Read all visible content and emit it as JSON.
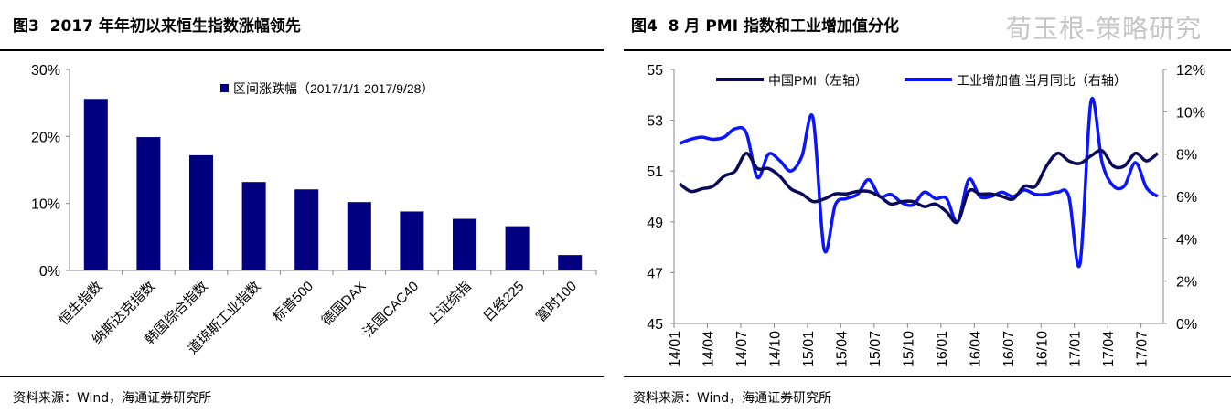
{
  "left": {
    "title": "图3  2017 年年初以来恒生指数涨幅领先",
    "footer": "资料来源：Wind，海通证券研究所"
  },
  "right": {
    "title": "图4  8 月 PMI 指数和工业增加值分化",
    "footer": "资料来源：Wind，海通证券研究所",
    "watermark": "荀玉根-策略研究"
  },
  "colors": {
    "bar": "#000080",
    "pmi": "#0a0a5a",
    "ip": "#0a14ff"
  },
  "chart_data": [
    {
      "type": "bar",
      "title": "2017 年年初以来恒生指数涨幅领先",
      "categories": [
        "恒生指数",
        "纳斯达克指数",
        "韩国综合指数",
        "道琼斯工业指数",
        "标普500",
        "德国DAX",
        "法国CAC40",
        "上证综指",
        "日经225",
        "富时100"
      ],
      "series": [
        {
          "name": "区间涨跌幅（2017/1/1-2017/9/28）",
          "values": [
            25.6,
            19.9,
            17.2,
            13.2,
            12.1,
            10.2,
            8.8,
            7.7,
            6.6,
            2.3
          ]
        }
      ],
      "ylim": [
        0,
        30
      ],
      "yticks": [
        "0%",
        "10%",
        "20%",
        "30%"
      ],
      "legend": "top-right"
    },
    {
      "type": "line",
      "title": "8 月 PMI 指数和工业增加值分化",
      "xticks": [
        "14/01",
        "14/04",
        "14/07",
        "14/10",
        "15/01",
        "15/04",
        "15/07",
        "15/10",
        "16/01",
        "16/04",
        "16/07",
        "16/10",
        "17/01",
        "17/04",
        "17/07"
      ],
      "x_start": "2014-01",
      "x_end": "2017-08",
      "yleft": {
        "range": [
          45,
          55
        ],
        "ticks": [
          "45",
          "47",
          "49",
          "51",
          "53",
          "55"
        ]
      },
      "yright": {
        "range": [
          0,
          12
        ],
        "ticks": [
          "0%",
          "2%",
          "4%",
          "6%",
          "8%",
          "10%",
          "12%"
        ]
      },
      "series": [
        {
          "name": "中国PMI（左轴）",
          "axis": "left",
          "values": [
            50.5,
            50.2,
            50.3,
            50.4,
            50.8,
            51.0,
            51.7,
            51.1,
            51.1,
            50.8,
            50.3,
            50.1,
            49.8,
            49.9,
            50.1,
            50.1,
            50.2,
            50.2,
            50.0,
            49.7,
            49.8,
            49.8,
            49.6,
            49.7,
            49.4,
            49.0,
            50.2,
            50.1,
            50.1,
            50.0,
            49.9,
            50.4,
            50.4,
            51.2,
            51.7,
            51.4,
            51.3,
            51.6,
            51.8,
            51.2,
            51.2,
            51.7,
            51.4,
            51.7
          ]
        },
        {
          "name": "工业增加值:当月同比（右轴）",
          "axis": "right",
          "values": [
            8.5,
            8.7,
            8.8,
            8.7,
            8.8,
            9.2,
            9.0,
            6.9,
            8.0,
            7.7,
            7.2,
            7.9,
            9.7,
            3.5,
            5.6,
            5.9,
            6.1,
            6.8,
            6.0,
            6.1,
            5.7,
            5.6,
            6.2,
            5.9,
            5.9,
            4.8,
            6.8,
            6.0,
            6.0,
            6.2,
            6.0,
            6.3,
            6.1,
            6.1,
            6.2,
            6.0,
            2.8,
            10.5,
            7.6,
            6.5,
            6.5,
            7.6,
            6.4,
            6.0
          ]
        }
      ],
      "legend": "top"
    }
  ]
}
